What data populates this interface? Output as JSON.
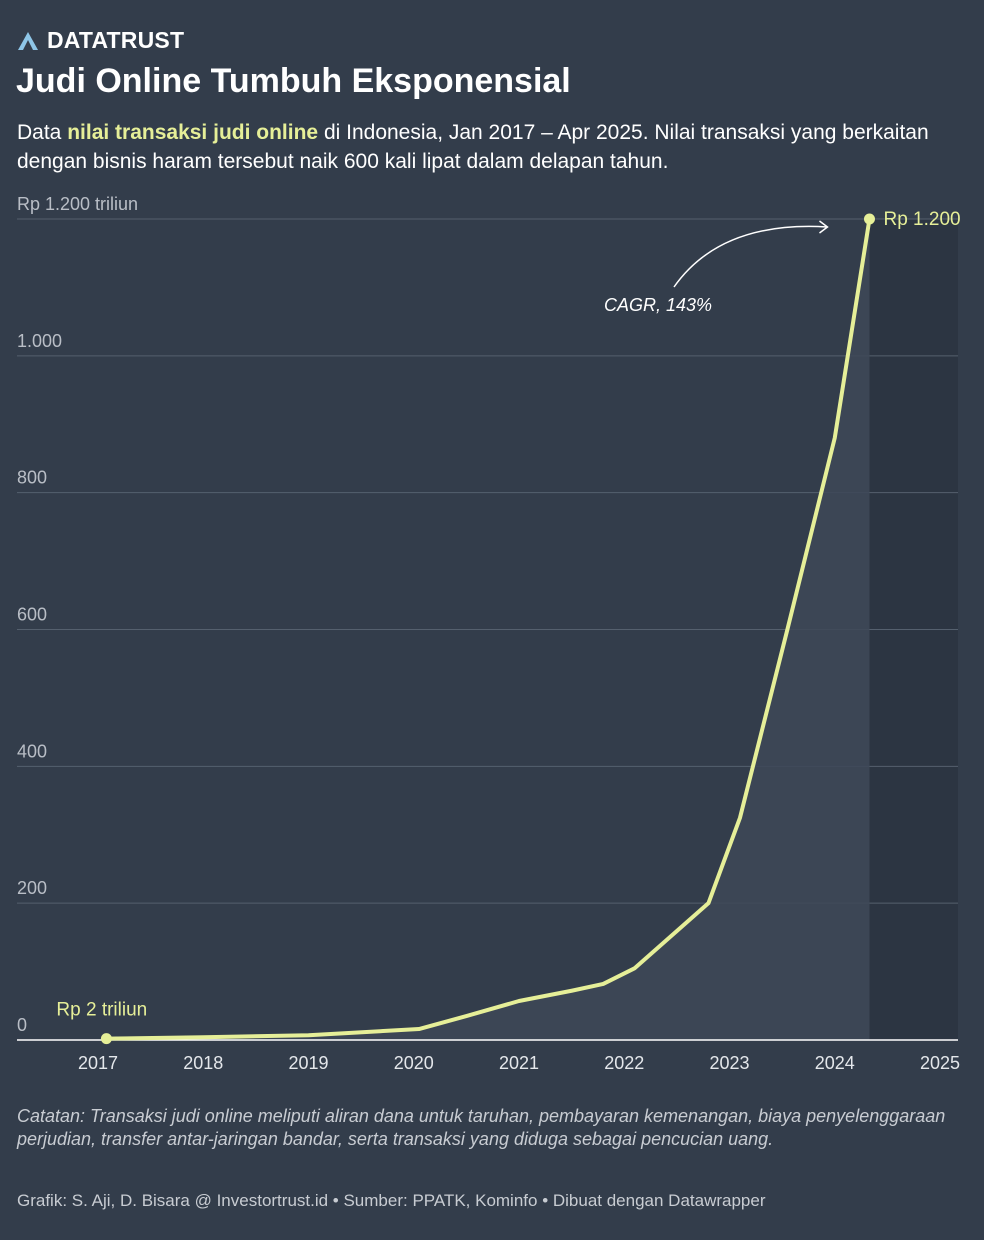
{
  "brand": {
    "name": "DATATRUST",
    "icon": "triangle-logo-icon"
  },
  "title": "Judi Online Tumbuh Eksponensial",
  "subtitle": {
    "prefix": "Data ",
    "highlight": "nilai transaksi judi online",
    "suffix": " di Indonesia, Jan 2017 – Apr 2025. Nilai transaksi yang berkaitan dengan bisnis haram tersebut naik 600 kali lipat dalam delapan tahun."
  },
  "colors": {
    "background": "#333d4b",
    "line": "#e6ef98",
    "grid": "#55606e",
    "muted": "#c8ccd2"
  },
  "chart_data": {
    "type": "line",
    "title": "Judi Online Tumbuh Eksponensial",
    "xlabel": "",
    "ylabel": "Rp triliun",
    "x_ticks": [
      2017,
      2018,
      2019,
      2020,
      2021,
      2022,
      2023,
      2024,
      2025
    ],
    "x_range": [
      2016.2,
      2025.5
    ],
    "ylim": [
      0,
      1200
    ],
    "y_ticks": [
      {
        "value": 0,
        "label": "0"
      },
      {
        "value": 200,
        "label": "200"
      },
      {
        "value": 400,
        "label": "400"
      },
      {
        "value": 600,
        "label": "600"
      },
      {
        "value": 800,
        "label": "800"
      },
      {
        "value": 1000,
        "label": "1.000"
      },
      {
        "value": 1200,
        "label": "Rp 1.200 triliun"
      }
    ],
    "grid": true,
    "series": [
      {
        "name": "Nilai transaksi judi online",
        "x": [
          2017.08,
          2018.0,
          2019.0,
          2020.05,
          2020.5,
          2021.0,
          2021.5,
          2021.8,
          2022.1,
          2022.8,
          2023.1,
          2023.55,
          2024.0,
          2024.33
        ],
        "values": [
          2,
          4,
          7,
          16,
          35,
          57,
          72,
          82,
          105,
          200,
          325,
          600,
          880,
          1200
        ]
      }
    ],
    "annotations": {
      "start_label": "Rp 2 triliun",
      "end_label": "Rp 1.200",
      "cagr_label": "CAGR, 143%"
    }
  },
  "note": "Catatan: Transaksi judi online meliputi aliran dana untuk taruhan, pembayaran kemenangan, biaya penyelenggaraan perjudian, transfer antar-jaringan bandar, serta transaksi yang diduga sebagai pencucian uang.",
  "footer": "Grafik: S. Aji, D. Bisara @ Investortrust.id • Sumber: PPATK, Kominfo • Dibuat dengan Datawrapper"
}
